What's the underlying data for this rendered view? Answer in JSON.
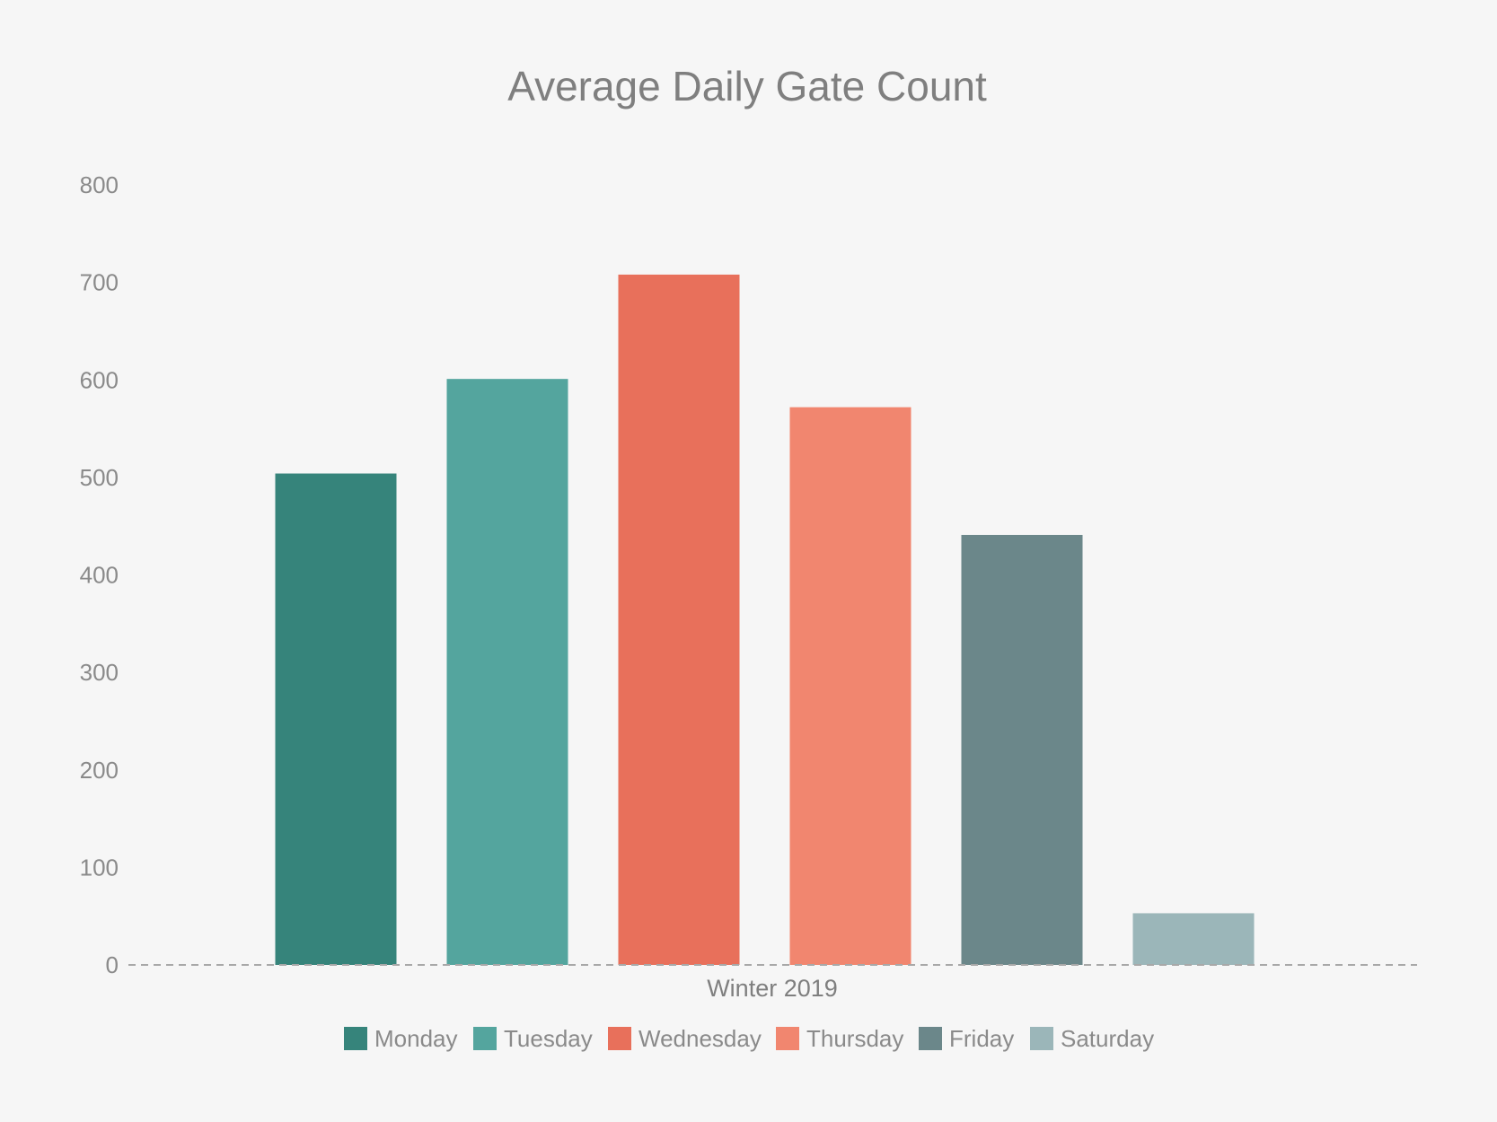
{
  "chart_data": {
    "type": "bar",
    "title": "Average Daily Gate Count",
    "categories": [
      "Winter 2019"
    ],
    "series": [
      {
        "name": "Monday",
        "values": [
          504
        ],
        "color": "#36847b"
      },
      {
        "name": "Tuesday",
        "values": [
          601
        ],
        "color": "#54a59e"
      },
      {
        "name": "Wednesday",
        "values": [
          708
        ],
        "color": "#e8705b"
      },
      {
        "name": "Thursday",
        "values": [
          572
        ],
        "color": "#f1866f"
      },
      {
        "name": "Friday",
        "values": [
          441
        ],
        "color": "#6b878a"
      },
      {
        "name": "Saturday",
        "values": [
          53
        ],
        "color": "#9bb6b9"
      }
    ],
    "yticks": [
      "0",
      "100",
      "200",
      "300",
      "400",
      "500",
      "600",
      "700",
      "800"
    ],
    "ylim": [
      0,
      800
    ],
    "xlabel": "",
    "ylabel": "",
    "grid": false,
    "legend_position": "bottom"
  }
}
